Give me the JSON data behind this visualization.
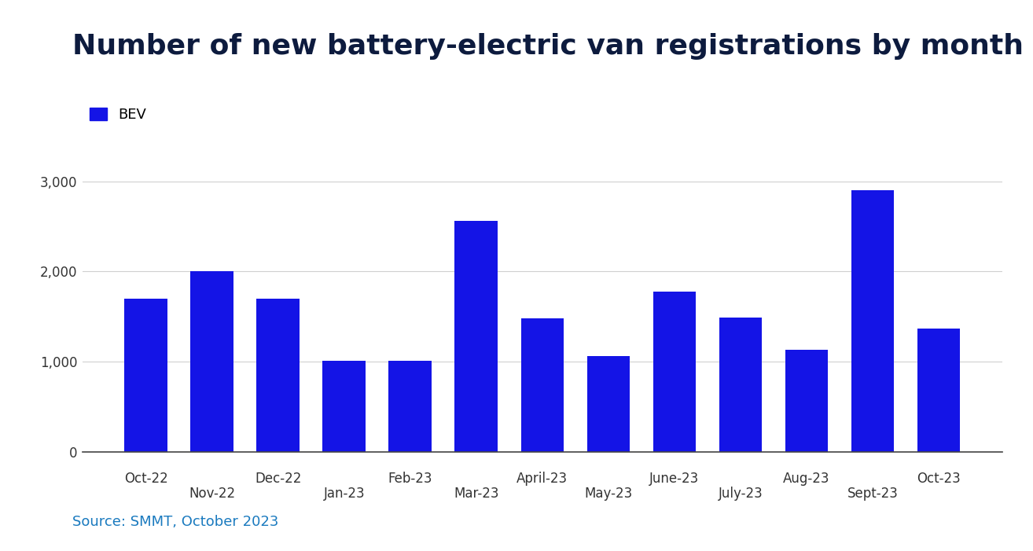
{
  "title": "Number of new battery-electric van registrations by month",
  "categories": [
    "Oct-22",
    "Nov-22",
    "Dec-22",
    "Jan-23",
    "Feb-23",
    "Mar-23",
    "April-23",
    "May-23",
    "June-23",
    "July-23",
    "Aug-23",
    "Sept-23",
    "Oct-23"
  ],
  "values": [
    1700,
    2000,
    1700,
    1010,
    1010,
    2560,
    1480,
    1060,
    1780,
    1490,
    1130,
    2900,
    1370
  ],
  "bar_color": "#1414e6",
  "legend_label": "BEV",
  "yticks": [
    0,
    1000,
    2000,
    3000
  ],
  "ylim": [
    0,
    3300
  ],
  "source_text": "Source: SMMT, October 2023",
  "background_color": "#ffffff",
  "title_color": "#0d1b3e",
  "axis_label_color": "#333333",
  "grid_color": "#d0d0d0",
  "source_color": "#1a7abf",
  "title_fontsize": 26,
  "tick_fontsize": 12,
  "source_fontsize": 13,
  "legend_fontsize": 13
}
